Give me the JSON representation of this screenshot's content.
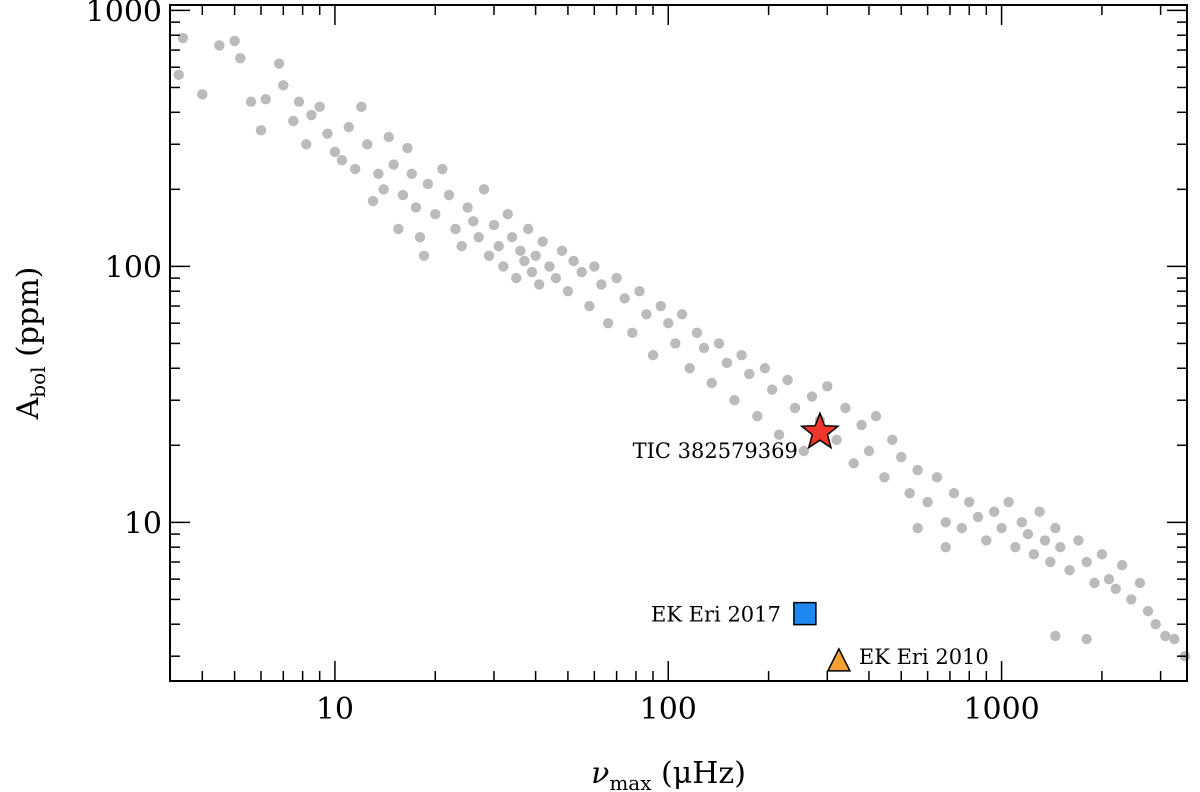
{
  "chart_data": {
    "type": "scatter",
    "title": "",
    "xscale": "log",
    "yscale": "log",
    "xlim": [
      3.2,
      3600
    ],
    "ylim": [
      2.4,
      1050
    ],
    "xlabel": {
      "symbol": "ν",
      "sub": "max",
      "unit": "(μHz)"
    },
    "ylabel": {
      "symbol": "A",
      "sub": "bol",
      "unit": "(ppm)"
    },
    "x_ticks": [
      {
        "value": 10,
        "label": "10"
      },
      {
        "value": 100,
        "label": "100"
      },
      {
        "value": 1000,
        "label": "1000"
      }
    ],
    "y_ticks": [
      {
        "value": 10,
        "label": "10"
      },
      {
        "value": 100,
        "label": "100"
      },
      {
        "value": 1000,
        "label": "1000"
      }
    ],
    "grid": false,
    "background_sample": {
      "color": "#bbbbbb",
      "points": [
        [
          3.5,
          780
        ],
        [
          3.4,
          560
        ],
        [
          4.0,
          470
        ],
        [
          4.5,
          730
        ],
        [
          5.0,
          760
        ],
        [
          5.2,
          650
        ],
        [
          5.6,
          440
        ],
        [
          6.0,
          340
        ],
        [
          6.2,
          450
        ],
        [
          6.8,
          620
        ],
        [
          7.0,
          510
        ],
        [
          7.5,
          370
        ],
        [
          7.8,
          440
        ],
        [
          8.2,
          300
        ],
        [
          8.5,
          390
        ],
        [
          9.0,
          420
        ],
        [
          9.5,
          330
        ],
        [
          10.0,
          280
        ],
        [
          10.5,
          260
        ],
        [
          11.0,
          350
        ],
        [
          11.5,
          240
        ],
        [
          12.0,
          420
        ],
        [
          12.5,
          300
        ],
        [
          13.0,
          180
        ],
        [
          13.5,
          230
        ],
        [
          14.0,
          200
        ],
        [
          14.5,
          320
        ],
        [
          15.0,
          250
        ],
        [
          15.5,
          140
        ],
        [
          16.0,
          190
        ],
        [
          16.5,
          290
        ],
        [
          17.0,
          230
        ],
        [
          17.5,
          170
        ],
        [
          18.0,
          130
        ],
        [
          18.5,
          110
        ],
        [
          19.0,
          210
        ],
        [
          20.0,
          160
        ],
        [
          21.0,
          240
        ],
        [
          22.0,
          190
        ],
        [
          23.0,
          140
        ],
        [
          24.0,
          120
        ],
        [
          25.0,
          170
        ],
        [
          26.0,
          150
        ],
        [
          27.0,
          130
        ],
        [
          28.0,
          200
        ],
        [
          29.0,
          110
        ],
        [
          30.0,
          145
        ],
        [
          31.0,
          120
        ],
        [
          32.0,
          100
        ],
        [
          33.0,
          160
        ],
        [
          34.0,
          130
        ],
        [
          35.0,
          90
        ],
        [
          36.0,
          115
        ],
        [
          37.0,
          105
        ],
        [
          38.0,
          140
        ],
        [
          39.0,
          95
        ],
        [
          40.0,
          110
        ],
        [
          41.0,
          85
        ],
        [
          42.0,
          125
        ],
        [
          44.0,
          100
        ],
        [
          46.0,
          90
        ],
        [
          48.0,
          115
        ],
        [
          50.0,
          80
        ],
        [
          52.0,
          105
        ],
        [
          55.0,
          95
        ],
        [
          58.0,
          70
        ],
        [
          60.0,
          100
        ],
        [
          63.0,
          85
        ],
        [
          66.0,
          60
        ],
        [
          70.0,
          90
        ],
        [
          74.0,
          75
        ],
        [
          78.0,
          55
        ],
        [
          82.0,
          80
        ],
        [
          86.0,
          65
        ],
        [
          90.0,
          45
        ],
        [
          95.0,
          70
        ],
        [
          100.0,
          60
        ],
        [
          105.0,
          50
        ],
        [
          110.0,
          65
        ],
        [
          116.0,
          40
        ],
        [
          122.0,
          55
        ],
        [
          128.0,
          48
        ],
        [
          135.0,
          35
        ],
        [
          142.0,
          50
        ],
        [
          150.0,
          42
        ],
        [
          158.0,
          30
        ],
        [
          166.0,
          45
        ],
        [
          175.0,
          38
        ],
        [
          185.0,
          26
        ],
        [
          195.0,
          40
        ],
        [
          205.0,
          33
        ],
        [
          215.0,
          22
        ],
        [
          228.0,
          36
        ],
        [
          240.0,
          28
        ],
        [
          255.0,
          19
        ],
        [
          270.0,
          31
        ],
        [
          285.0,
          25
        ],
        [
          300.0,
          34
        ],
        [
          320.0,
          21
        ],
        [
          340.0,
          28
        ],
        [
          360.0,
          17
        ],
        [
          380.0,
          24
        ],
        [
          400.0,
          19
        ],
        [
          420.0,
          26
        ],
        [
          445.0,
          15
        ],
        [
          470.0,
          21
        ],
        [
          500.0,
          18
        ],
        [
          530.0,
          13
        ],
        [
          560.0,
          16
        ],
        [
          600.0,
          12
        ],
        [
          640.0,
          15
        ],
        [
          680.0,
          10
        ],
        [
          720.0,
          13
        ],
        [
          760.0,
          9.5
        ],
        [
          800.0,
          12
        ],
        [
          850.0,
          10.5
        ],
        [
          900.0,
          8.5
        ],
        [
          950.0,
          11
        ],
        [
          1000.0,
          9.5
        ],
        [
          1050.0,
          12
        ],
        [
          1100.0,
          8
        ],
        [
          1150.0,
          10
        ],
        [
          1200.0,
          9
        ],
        [
          1250.0,
          7.5
        ],
        [
          1300.0,
          11
        ],
        [
          1350.0,
          8.5
        ],
        [
          1400.0,
          7
        ],
        [
          1450.0,
          9.5
        ],
        [
          1500.0,
          8
        ],
        [
          1600.0,
          6.5
        ],
        [
          1700.0,
          8.5
        ],
        [
          1800.0,
          7
        ],
        [
          1900.0,
          5.8
        ],
        [
          2000.0,
          7.5
        ],
        [
          2100.0,
          6
        ],
        [
          2200.0,
          5.5
        ],
        [
          2300.0,
          6.8
        ],
        [
          2450.0,
          5
        ],
        [
          2600.0,
          5.8
        ],
        [
          2750.0,
          4.5
        ],
        [
          2900.0,
          4
        ],
        [
          3100.0,
          3.6
        ],
        [
          3300.0,
          3.5
        ],
        [
          3550.0,
          3.0
        ],
        [
          1450.0,
          3.6
        ],
        [
          1800.0,
          3.5
        ],
        [
          680.0,
          8
        ],
        [
          560.0,
          9.5
        ]
      ]
    },
    "highlighted": [
      {
        "name": "TIC 382579369",
        "x": 285,
        "y": 22.5,
        "marker": "star",
        "color": "#f0352b"
      },
      {
        "name": "EK Eri 2017",
        "x": 257,
        "y": 4.4,
        "marker": "square",
        "color": "#1f87f0"
      },
      {
        "name": "EK Eri 2010",
        "x": 325,
        "y": 2.85,
        "marker": "triangle",
        "color": "#f4a032"
      }
    ]
  }
}
